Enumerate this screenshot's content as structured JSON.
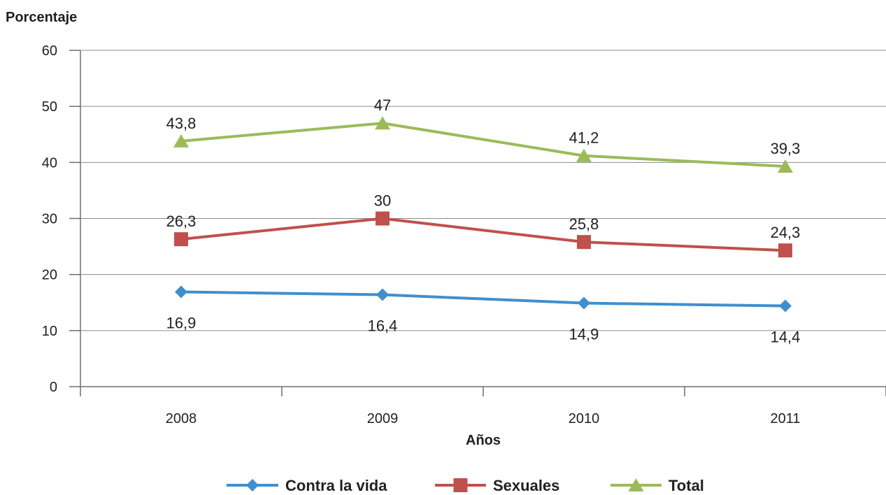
{
  "chart_data": {
    "type": "line",
    "ylabel": "Porcentaje",
    "xlabel": "Años",
    "categories": [
      "2008",
      "2009",
      "2010",
      "2011"
    ],
    "ylim": [
      0,
      60
    ],
    "yticks": [
      0,
      10,
      20,
      30,
      40,
      50,
      60
    ],
    "grid": true,
    "legend_position": "bottom",
    "series": [
      {
        "name": "Contra la vida",
        "values": [
          16.9,
          16.4,
          14.9,
          14.4
        ],
        "labels": [
          "16,9",
          "16,4",
          "14,9",
          "14,4"
        ],
        "marker": "diamond",
        "color": "#3f8fcf",
        "label_position": "below"
      },
      {
        "name": "Sexuales",
        "values": [
          26.3,
          30,
          25.8,
          24.3
        ],
        "labels": [
          "26,3",
          "30",
          "25,8",
          "24,3"
        ],
        "marker": "square",
        "color": "#c0504d",
        "label_position": "above"
      },
      {
        "name": "Total",
        "values": [
          43.8,
          47,
          41.2,
          39.3
        ],
        "labels": [
          "43,8",
          "47",
          "41,2",
          "39,3"
        ],
        "marker": "triangle",
        "color": "#9bbb59",
        "label_position": "above"
      }
    ]
  }
}
